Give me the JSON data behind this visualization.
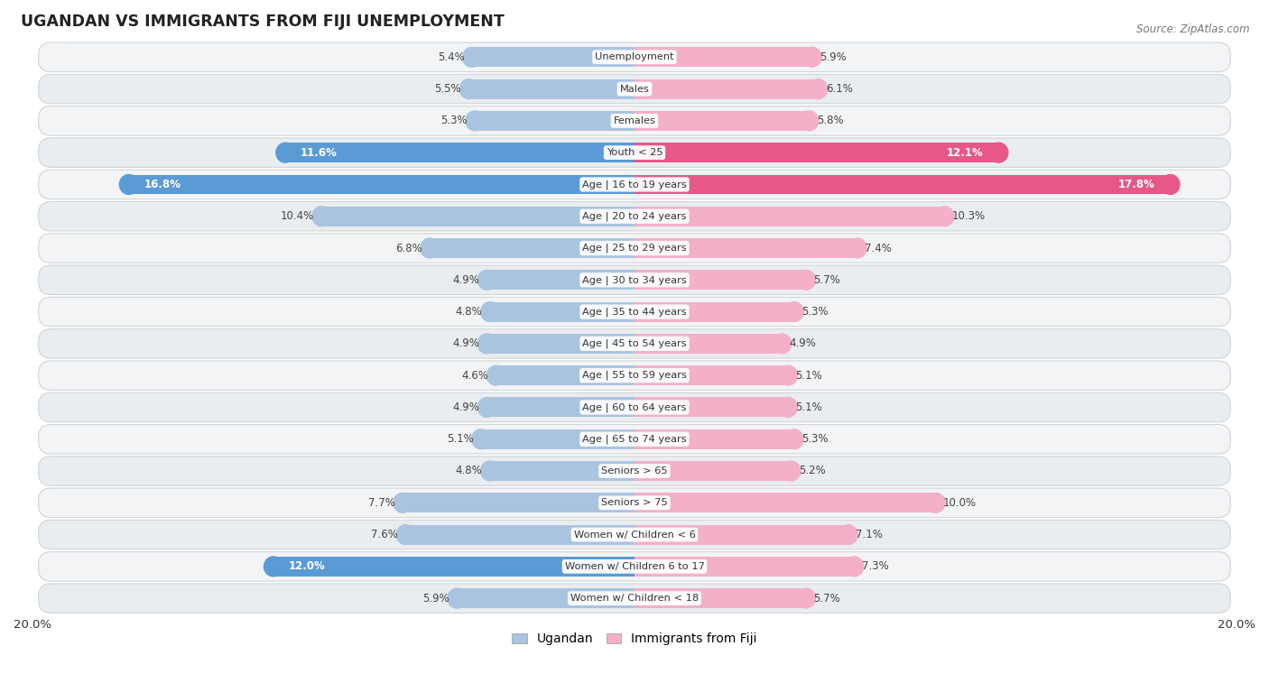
{
  "title": "UGANDAN VS IMMIGRANTS FROM FIJI UNEMPLOYMENT",
  "source": "Source: ZipAtlas.com",
  "categories": [
    "Unemployment",
    "Males",
    "Females",
    "Youth < 25",
    "Age | 16 to 19 years",
    "Age | 20 to 24 years",
    "Age | 25 to 29 years",
    "Age | 30 to 34 years",
    "Age | 35 to 44 years",
    "Age | 45 to 54 years",
    "Age | 55 to 59 years",
    "Age | 60 to 64 years",
    "Age | 65 to 74 years",
    "Seniors > 65",
    "Seniors > 75",
    "Women w/ Children < 6",
    "Women w/ Children 6 to 17",
    "Women w/ Children < 18"
  ],
  "ugandan": [
    5.4,
    5.5,
    5.3,
    11.6,
    16.8,
    10.4,
    6.8,
    4.9,
    4.8,
    4.9,
    4.6,
    4.9,
    5.1,
    4.8,
    7.7,
    7.6,
    12.0,
    5.9
  ],
  "fiji": [
    5.9,
    6.1,
    5.8,
    12.1,
    17.8,
    10.3,
    7.4,
    5.7,
    5.3,
    4.9,
    5.1,
    5.1,
    5.3,
    5.2,
    10.0,
    7.1,
    7.3,
    5.7
  ],
  "ugandan_color_normal": "#aac4e0",
  "ugandan_color_highlight": "#5b9bd5",
  "fiji_color_normal": "#f4b0c8",
  "fiji_color_highlight": "#e8578a",
  "max_val": 20.0,
  "legend_ugandan": "Ugandan",
  "legend_fiji": "Immigrants from Fiji",
  "bar_height": 0.62,
  "row_bg_light": "#f2f2f2",
  "row_bg_dark": "#e8e8e8",
  "row_sep_color": "#d0d0d0"
}
